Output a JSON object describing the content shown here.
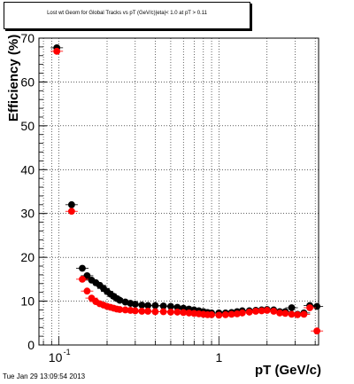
{
  "chart_data": {
    "type": "scatter",
    "title": "Lost wt Geom for Global Tracks vs pT (GeV/c)|eta|< 1.0 at pT > 0.11",
    "xlabel": "pT (GeV/c)",
    "ylabel": "Efficiency (%)",
    "xscale": "log",
    "xlim": [
      0.075,
      4.2
    ],
    "ylim": [
      0,
      70
    ],
    "yticks": [
      0,
      10,
      20,
      30,
      40,
      50,
      60,
      70
    ],
    "xtick_labels": [
      {
        "value": 0.1,
        "base": "10",
        "exp": "-1"
      },
      {
        "value": 1,
        "base": "1",
        "exp": ""
      }
    ],
    "grid": true,
    "series": [
      {
        "color": "#000000",
        "points": [
          [
            0.097,
            67.8
          ],
          [
            0.12,
            32.0
          ],
          [
            0.14,
            17.5
          ],
          [
            0.15,
            15.8
          ],
          [
            0.16,
            14.8
          ],
          [
            0.17,
            14.2
          ],
          [
            0.18,
            13.6
          ],
          [
            0.19,
            12.9
          ],
          [
            0.2,
            12.2
          ],
          [
            0.21,
            11.6
          ],
          [
            0.22,
            11.1
          ],
          [
            0.23,
            10.6
          ],
          [
            0.24,
            10.2
          ],
          [
            0.26,
            9.8
          ],
          [
            0.28,
            9.5
          ],
          [
            0.3,
            9.3
          ],
          [
            0.33,
            9.1
          ],
          [
            0.36,
            9.0
          ],
          [
            0.4,
            9.0
          ],
          [
            0.45,
            8.9
          ],
          [
            0.5,
            8.8
          ],
          [
            0.55,
            8.6
          ],
          [
            0.6,
            8.4
          ],
          [
            0.65,
            8.2
          ],
          [
            0.7,
            8.0
          ],
          [
            0.75,
            7.8
          ],
          [
            0.8,
            7.6
          ],
          [
            0.85,
            7.4
          ],
          [
            0.9,
            7.3
          ],
          [
            1.0,
            7.3
          ],
          [
            1.1,
            7.3
          ],
          [
            1.2,
            7.4
          ],
          [
            1.3,
            7.6
          ],
          [
            1.4,
            7.8
          ],
          [
            1.55,
            7.8
          ],
          [
            1.7,
            7.9
          ],
          [
            1.85,
            8.0
          ],
          [
            2.0,
            8.1
          ],
          [
            2.2,
            8.0
          ],
          [
            2.4,
            7.6
          ],
          [
            2.6,
            7.6
          ],
          [
            2.85,
            8.5
          ],
          [
            3.1,
            7.0
          ],
          [
            3.4,
            7.3
          ],
          [
            3.7,
            9.0
          ],
          [
            4.1,
            8.8
          ]
        ]
      },
      {
        "color": "#ff0000",
        "points": [
          [
            0.097,
            67.0
          ],
          [
            0.12,
            30.5
          ],
          [
            0.14,
            15.0
          ],
          [
            0.15,
            12.3
          ],
          [
            0.16,
            10.7
          ],
          [
            0.17,
            9.9
          ],
          [
            0.18,
            9.4
          ],
          [
            0.19,
            9.1
          ],
          [
            0.2,
            8.8
          ],
          [
            0.21,
            8.6
          ],
          [
            0.22,
            8.4
          ],
          [
            0.23,
            8.2
          ],
          [
            0.24,
            8.1
          ],
          [
            0.26,
            8.0
          ],
          [
            0.28,
            7.9
          ],
          [
            0.3,
            7.8
          ],
          [
            0.33,
            7.7
          ],
          [
            0.36,
            7.7
          ],
          [
            0.4,
            7.6
          ],
          [
            0.45,
            7.6
          ],
          [
            0.5,
            7.5
          ],
          [
            0.55,
            7.5
          ],
          [
            0.6,
            7.4
          ],
          [
            0.65,
            7.3
          ],
          [
            0.7,
            7.2
          ],
          [
            0.75,
            7.1
          ],
          [
            0.8,
            7.0
          ],
          [
            0.85,
            6.9
          ],
          [
            0.9,
            6.9
          ],
          [
            1.0,
            6.8
          ],
          [
            1.1,
            6.9
          ],
          [
            1.2,
            7.0
          ],
          [
            1.3,
            7.1
          ],
          [
            1.4,
            7.3
          ],
          [
            1.55,
            7.5
          ],
          [
            1.7,
            7.7
          ],
          [
            1.85,
            7.8
          ],
          [
            2.0,
            7.9
          ],
          [
            2.2,
            7.7
          ],
          [
            2.4,
            7.3
          ],
          [
            2.6,
            7.2
          ],
          [
            2.85,
            7.0
          ],
          [
            3.1,
            6.9
          ],
          [
            3.4,
            7.0
          ],
          [
            3.7,
            8.5
          ],
          [
            4.1,
            3.2
          ]
        ]
      }
    ]
  },
  "footer": {
    "timestamp": "Tue Jan 29 13:09:54 2013"
  }
}
